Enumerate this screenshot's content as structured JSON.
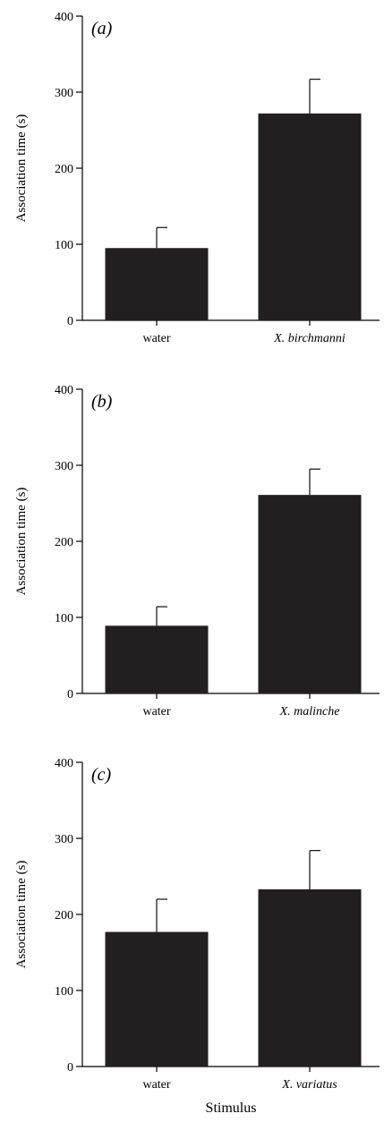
{
  "chart_data": [
    {
      "type": "bar",
      "panel_label": "(a)",
      "categories": [
        "water",
        "X. birchmanni"
      ],
      "category_italic": [
        false,
        true
      ],
      "values": [
        95,
        272
      ],
      "errors": [
        27,
        45
      ],
      "ylabel": "Association time (s)",
      "xlabel": "",
      "ylim": [
        0,
        400
      ],
      "yticks": [
        0,
        100,
        200,
        300,
        400
      ],
      "bar_color": "#231f20"
    },
    {
      "type": "bar",
      "panel_label": "(b)",
      "categories": [
        "water",
        "X. malinche"
      ],
      "category_italic": [
        false,
        true
      ],
      "values": [
        89,
        261
      ],
      "errors": [
        25,
        34
      ],
      "ylabel": "Association time (s)",
      "xlabel": "",
      "ylim": [
        0,
        400
      ],
      "yticks": [
        0,
        100,
        200,
        300,
        400
      ],
      "bar_color": "#231f20"
    },
    {
      "type": "bar",
      "panel_label": "(c)",
      "categories": [
        "water",
        "X. variatus"
      ],
      "category_italic": [
        false,
        true
      ],
      "values": [
        177,
        233
      ],
      "errors": [
        43,
        51
      ],
      "ylabel": "Association time (s)",
      "xlabel": "Stimulus",
      "ylim": [
        0,
        400
      ],
      "yticks": [
        0,
        100,
        200,
        300,
        400
      ],
      "bar_color": "#231f20"
    }
  ]
}
